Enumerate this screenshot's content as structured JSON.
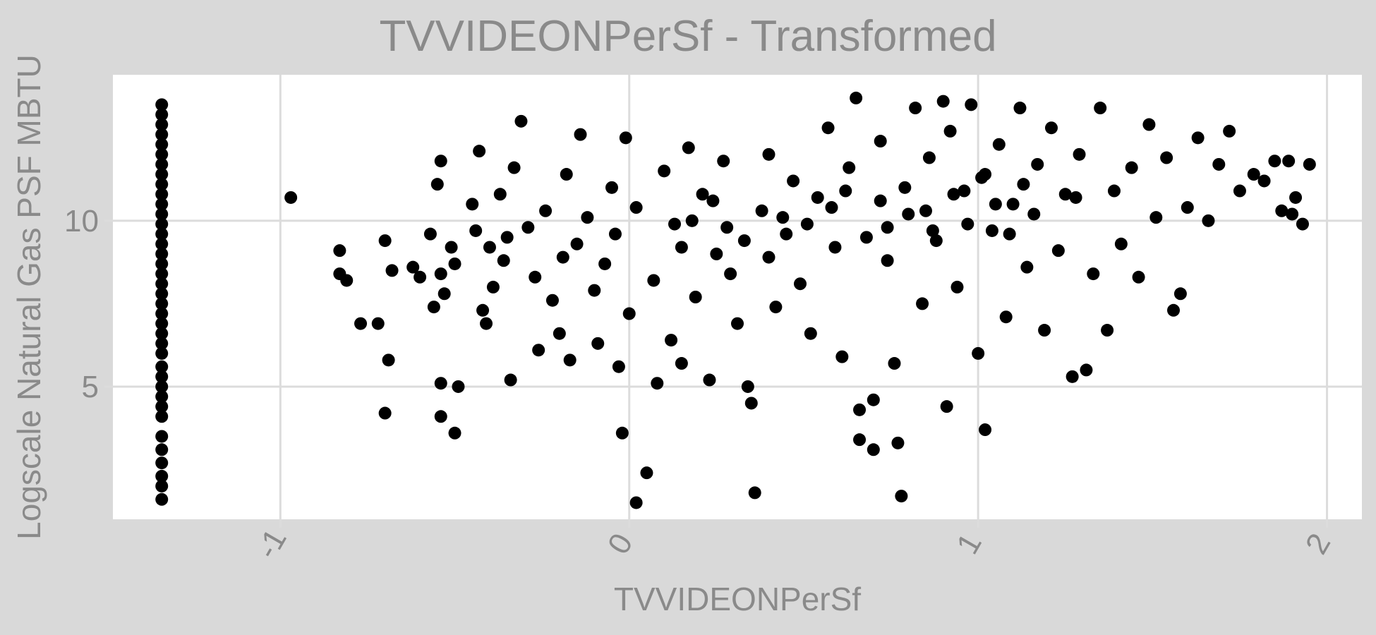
{
  "chart_data": {
    "type": "scatter",
    "title": "TVVIDEONPerSf - Transformed",
    "xlabel": "TVVIDEONPerSf",
    "ylabel": "Logscale Natural Gas PSF MBTU",
    "xlim": [
      -1.48,
      2.1
    ],
    "ylim": [
      1.0,
      14.4
    ],
    "x_ticks": [
      -1,
      0,
      1,
      2
    ],
    "y_ticks": [
      5,
      10
    ],
    "grid": true,
    "legend": "none",
    "point_color": "#000000",
    "panel_background": "#ffffff",
    "page_background": "#d9d9d9",
    "series": [
      {
        "points": [
          [
            -1.34,
            1.6
          ],
          [
            -1.34,
            2.0
          ],
          [
            -1.34,
            2.3
          ],
          [
            -1.34,
            2.7
          ],
          [
            -1.34,
            3.1
          ],
          [
            -1.34,
            3.5
          ],
          [
            -1.34,
            4.1
          ],
          [
            -1.34,
            4.4
          ],
          [
            -1.34,
            4.7
          ],
          [
            -1.34,
            5.0
          ],
          [
            -1.34,
            5.3
          ],
          [
            -1.34,
            5.6
          ],
          [
            -1.34,
            6.0
          ],
          [
            -1.34,
            6.3
          ],
          [
            -1.34,
            6.6
          ],
          [
            -1.34,
            6.9
          ],
          [
            -1.34,
            7.2
          ],
          [
            -1.34,
            7.5
          ],
          [
            -1.34,
            7.8
          ],
          [
            -1.34,
            8.1
          ],
          [
            -1.34,
            8.4
          ],
          [
            -1.34,
            8.7
          ],
          [
            -1.34,
            9.0
          ],
          [
            -1.34,
            9.3
          ],
          [
            -1.34,
            9.6
          ],
          [
            -1.34,
            9.9
          ],
          [
            -1.34,
            10.2
          ],
          [
            -1.34,
            10.5
          ],
          [
            -1.34,
            10.8
          ],
          [
            -1.34,
            11.1
          ],
          [
            -1.34,
            11.4
          ],
          [
            -1.34,
            11.7
          ],
          [
            -1.34,
            12.0
          ],
          [
            -1.34,
            12.3
          ],
          [
            -1.34,
            12.6
          ],
          [
            -1.34,
            12.9
          ],
          [
            -1.34,
            13.2
          ],
          [
            -1.34,
            13.5
          ],
          [
            -0.97,
            10.7
          ],
          [
            -0.83,
            9.1
          ],
          [
            -0.83,
            8.4
          ],
          [
            -0.81,
            8.2
          ],
          [
            -0.77,
            6.9
          ],
          [
            -0.72,
            6.9
          ],
          [
            -0.7,
            9.4
          ],
          [
            -0.69,
            5.8
          ],
          [
            -0.7,
            4.2
          ],
          [
            -0.68,
            8.5
          ],
          [
            -0.62,
            8.6
          ],
          [
            -0.6,
            8.3
          ],
          [
            -0.57,
            9.6
          ],
          [
            -0.56,
            7.4
          ],
          [
            -0.55,
            11.1
          ],
          [
            -0.54,
            11.8
          ],
          [
            -0.54,
            8.4
          ],
          [
            -0.53,
            7.8
          ],
          [
            -0.54,
            5.1
          ],
          [
            -0.54,
            4.1
          ],
          [
            -0.51,
            9.2
          ],
          [
            -0.5,
            8.7
          ],
          [
            -0.5,
            3.6
          ],
          [
            -0.49,
            5.0
          ],
          [
            -0.45,
            10.5
          ],
          [
            -0.44,
            9.7
          ],
          [
            -0.43,
            12.1
          ],
          [
            -0.42,
            7.3
          ],
          [
            -0.41,
            6.9
          ],
          [
            -0.4,
            9.2
          ],
          [
            -0.39,
            8.0
          ],
          [
            -0.37,
            10.8
          ],
          [
            -0.36,
            8.8
          ],
          [
            -0.35,
            9.5
          ],
          [
            -0.34,
            5.2
          ],
          [
            -0.33,
            11.6
          ],
          [
            -0.31,
            13.0
          ],
          [
            -0.29,
            9.8
          ],
          [
            -0.27,
            8.3
          ],
          [
            -0.26,
            6.1
          ],
          [
            -0.24,
            10.3
          ],
          [
            -0.22,
            7.6
          ],
          [
            -0.2,
            6.6
          ],
          [
            -0.19,
            8.9
          ],
          [
            -0.18,
            11.4
          ],
          [
            -0.17,
            5.8
          ],
          [
            -0.15,
            9.3
          ],
          [
            -0.14,
            12.6
          ],
          [
            -0.12,
            10.1
          ],
          [
            -0.1,
            7.9
          ],
          [
            -0.09,
            6.3
          ],
          [
            -0.07,
            8.7
          ],
          [
            -0.05,
            11.0
          ],
          [
            -0.04,
            9.6
          ],
          [
            -0.03,
            5.6
          ],
          [
            -0.02,
            3.6
          ],
          [
            -0.01,
            12.5
          ],
          [
            0.0,
            7.2
          ],
          [
            0.02,
            1.5
          ],
          [
            0.02,
            10.4
          ],
          [
            0.05,
            2.4
          ],
          [
            0.07,
            8.2
          ],
          [
            0.08,
            5.1
          ],
          [
            0.1,
            11.5
          ],
          [
            0.12,
            6.4
          ],
          [
            0.13,
            9.9
          ],
          [
            0.15,
            5.7
          ],
          [
            0.17,
            12.2
          ],
          [
            0.19,
            7.7
          ],
          [
            0.21,
            10.8
          ],
          [
            0.23,
            5.2
          ],
          [
            0.25,
            9.0
          ],
          [
            0.27,
            11.8
          ],
          [
            0.29,
            8.4
          ],
          [
            0.31,
            6.9
          ],
          [
            0.34,
            5.0
          ],
          [
            0.35,
            4.5
          ],
          [
            0.36,
            1.8
          ],
          [
            0.38,
            10.3
          ],
          [
            0.4,
            12.0
          ],
          [
            0.42,
            7.4
          ],
          [
            0.45,
            9.6
          ],
          [
            0.47,
            11.2
          ],
          [
            0.49,
            8.1
          ],
          [
            0.52,
            6.6
          ],
          [
            0.54,
            10.7
          ],
          [
            0.57,
            12.8
          ],
          [
            0.59,
            9.2
          ],
          [
            0.61,
            5.9
          ],
          [
            0.63,
            11.6
          ],
          [
            0.65,
            13.7
          ],
          [
            0.66,
            4.3
          ],
          [
            0.66,
            3.4
          ],
          [
            0.7,
            4.6
          ],
          [
            0.7,
            3.1
          ],
          [
            0.72,
            12.4
          ],
          [
            0.74,
            8.8
          ],
          [
            0.76,
            5.7
          ],
          [
            0.77,
            3.3
          ],
          [
            0.78,
            1.7
          ],
          [
            0.8,
            10.2
          ],
          [
            0.82,
            13.4
          ],
          [
            0.84,
            7.5
          ],
          [
            0.86,
            11.9
          ],
          [
            0.88,
            9.4
          ],
          [
            0.9,
            13.6
          ],
          [
            0.91,
            4.4
          ],
          [
            0.92,
            12.7
          ],
          [
            0.94,
            8.0
          ],
          [
            0.96,
            10.9
          ],
          [
            0.98,
            13.5
          ],
          [
            1.0,
            6.0
          ],
          [
            1.01,
            11.3
          ],
          [
            1.02,
            3.7
          ],
          [
            1.04,
            9.7
          ],
          [
            1.06,
            12.3
          ],
          [
            1.08,
            7.1
          ],
          [
            1.1,
            10.5
          ],
          [
            1.12,
            13.4
          ],
          [
            1.14,
            8.6
          ],
          [
            1.17,
            11.7
          ],
          [
            1.19,
            6.7
          ],
          [
            1.21,
            12.8
          ],
          [
            1.23,
            9.1
          ],
          [
            1.25,
            10.8
          ],
          [
            1.27,
            5.3
          ],
          [
            1.29,
            12.0
          ],
          [
            1.31,
            5.5
          ],
          [
            1.33,
            8.4
          ],
          [
            1.35,
            13.4
          ],
          [
            1.37,
            6.7
          ],
          [
            1.39,
            10.9
          ],
          [
            1.41,
            9.3
          ],
          [
            1.44,
            11.6
          ],
          [
            1.46,
            8.3
          ],
          [
            1.49,
            12.9
          ],
          [
            1.51,
            10.1
          ],
          [
            1.54,
            11.9
          ],
          [
            1.56,
            7.3
          ],
          [
            1.58,
            7.8
          ],
          [
            1.6,
            10.4
          ],
          [
            1.63,
            12.5
          ],
          [
            1.66,
            10.0
          ],
          [
            1.69,
            11.7
          ],
          [
            1.72,
            12.7
          ],
          [
            1.75,
            10.9
          ],
          [
            1.79,
            11.4
          ],
          [
            1.82,
            11.2
          ],
          [
            1.85,
            11.8
          ],
          [
            1.87,
            10.3
          ],
          [
            1.89,
            11.8
          ],
          [
            1.9,
            10.2
          ],
          [
            1.91,
            10.7
          ],
          [
            1.93,
            9.9
          ],
          [
            1.95,
            11.7
          ],
          [
            0.18,
            10.0
          ],
          [
            0.28,
            9.8
          ],
          [
            0.44,
            10.1
          ],
          [
            0.58,
            10.4
          ],
          [
            0.72,
            10.6
          ],
          [
            0.85,
            10.3
          ],
          [
            0.93,
            10.8
          ],
          [
            1.05,
            10.5
          ],
          [
            1.16,
            10.2
          ],
          [
            1.28,
            10.7
          ],
          [
            0.33,
            9.4
          ],
          [
            0.51,
            9.9
          ],
          [
            0.68,
            9.5
          ],
          [
            0.79,
            11.0
          ],
          [
            0.97,
            9.9
          ],
          [
            1.13,
            11.1
          ],
          [
            0.24,
            10.6
          ],
          [
            0.62,
            10.9
          ],
          [
            0.87,
            9.7
          ],
          [
            1.02,
            11.4
          ],
          [
            0.4,
            8.9
          ],
          [
            0.74,
            9.8
          ],
          [
            1.09,
            9.6
          ],
          [
            0.15,
            9.2
          ]
        ]
      }
    ]
  }
}
